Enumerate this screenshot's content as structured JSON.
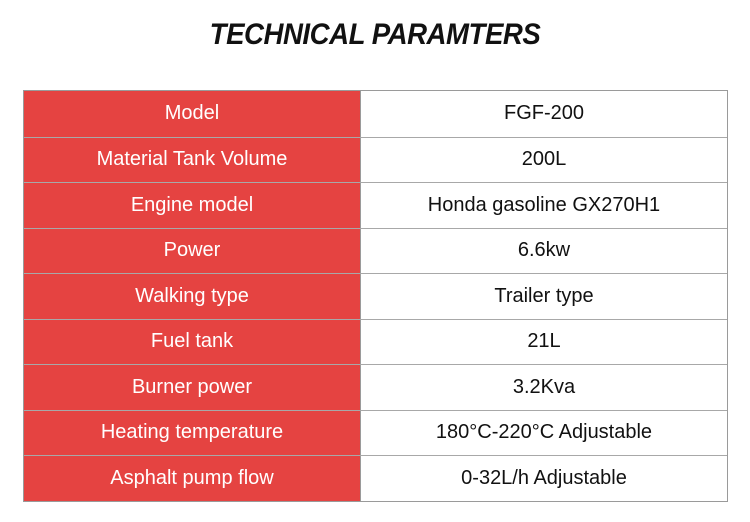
{
  "title": "TECHNICAL PARAMTERS",
  "colors": {
    "label_bg": "#e54341",
    "label_text": "#ffffff",
    "value_text": "#111111"
  },
  "rows": [
    {
      "label": "Model",
      "value": "FGF-200"
    },
    {
      "label": "Material Tank Volume",
      "value": "200L"
    },
    {
      "label": "Engine model",
      "value": "Honda gasoline GX270H1"
    },
    {
      "label": "Power",
      "value": "6.6kw"
    },
    {
      "label": "Walking type",
      "value": "Trailer type"
    },
    {
      "label": "Fuel tank",
      "value": "21L"
    },
    {
      "label": "Burner power",
      "value": "3.2Kva"
    },
    {
      "label": "Heating temperature",
      "value": "180°C-220°C Adjustable"
    },
    {
      "label": "Asphalt pump flow",
      "value": "0-32L/h Adjustable"
    }
  ]
}
